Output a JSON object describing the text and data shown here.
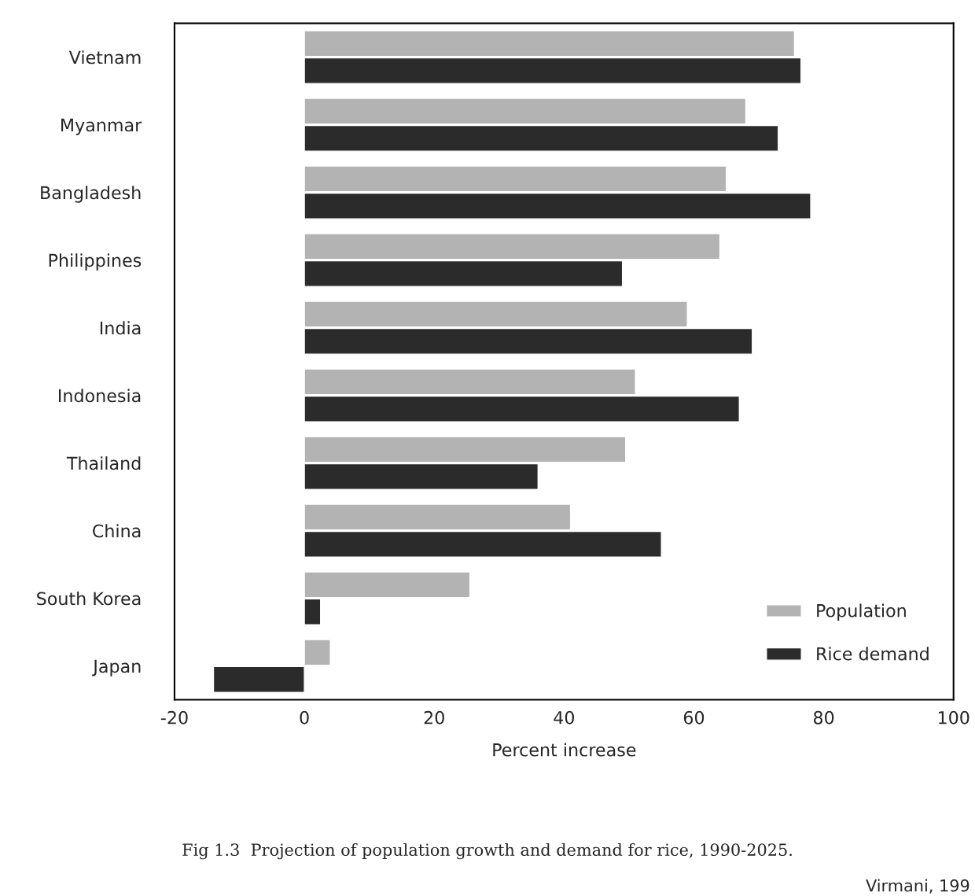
{
  "chart_data": {
    "type": "bar",
    "orientation": "horizontal",
    "xlabel": "Percent increase",
    "categories": [
      "Vietnam",
      "Myanmar",
      "Bangladesh",
      "Philippines",
      "India",
      "Indonesia",
      "Thailand",
      "China",
      "South Korea",
      "Japan"
    ],
    "series": [
      {
        "name": "Population",
        "color": "#b3b3b3",
        "values": [
          75.5,
          68,
          65,
          64,
          59,
          51,
          49.5,
          41,
          25.5,
          4
        ]
      },
      {
        "name": "Rice demand",
        "color": "#2b2b2b",
        "values": [
          76.5,
          73,
          78,
          49,
          69,
          67,
          36,
          55,
          2.5,
          -14
        ]
      }
    ],
    "xlim": [
      -20,
      100
    ],
    "xticks": [
      -20,
      0,
      20,
      40,
      60,
      80,
      100
    ],
    "grid": false,
    "legend": "bottom right",
    "annotations": [
      "Fig 1.3  Projection of population growth and demand for rice, 1990-2025.",
      "Virmani, 199"
    ]
  }
}
